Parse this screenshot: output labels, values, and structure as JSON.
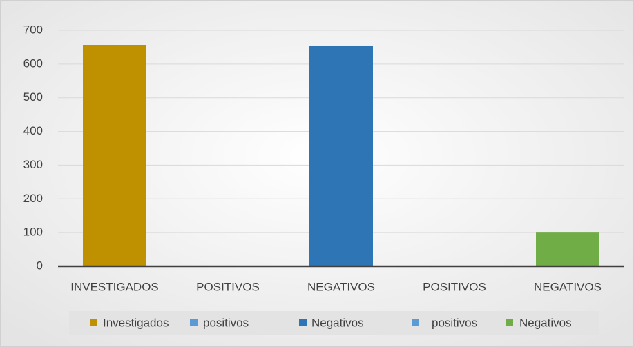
{
  "chart_data": {
    "type": "bar",
    "categories": [
      "INVESTIGADOS",
      "POSITIVOS",
      "NEGATIVOS",
      "POSITIVOS",
      "NEGATIVOS"
    ],
    "series": [
      {
        "name": "Investigados",
        "color": "#bf9000",
        "values": [
          657,
          null,
          null,
          null,
          null
        ]
      },
      {
        "name": "positivos",
        "color": "#5b9bd5",
        "values": [
          null,
          0,
          null,
          null,
          null
        ]
      },
      {
        "name": "Negativos",
        "color": "#2e75b6",
        "values": [
          null,
          null,
          655,
          null,
          null
        ]
      },
      {
        "name": "positivos",
        "color": "#5b9bd5",
        "values": [
          null,
          null,
          null,
          0,
          null
        ]
      },
      {
        "name": "Negativos",
        "color": "#70ad47",
        "values": [
          null,
          null,
          null,
          null,
          100
        ]
      }
    ],
    "ylim": [
      0,
      700
    ],
    "yticks": [
      0,
      100,
      200,
      300,
      400,
      500,
      600,
      700
    ],
    "grid": true,
    "legend": "bottom"
  }
}
